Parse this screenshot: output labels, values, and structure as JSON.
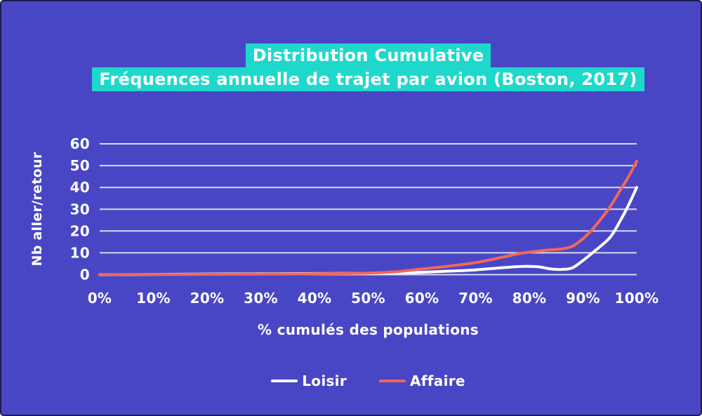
{
  "title": {
    "line1": "Distribution Cumulative",
    "line2": "Fréquences annuelle de trajet par avion (Boston, 2017)"
  },
  "colors": {
    "background": "#4946c6",
    "title_highlight": "#1ed9cb",
    "title_text": "#ffffff",
    "grid": "#d9d9ee",
    "tick_text": "#ffffff",
    "loisir": "#ffffff",
    "affaire": "#f2675a",
    "border": "#1e1d42"
  },
  "chart_data": {
    "type": "line",
    "title": "Distribution Cumulative Fréquences annuelle de trajet par avion (Boston, 2017)",
    "xlabel": "% cumulés des populations",
    "ylabel": "Nb aller/retour",
    "xlim": [
      0,
      100
    ],
    "ylim": [
      0,
      60
    ],
    "grid": "horizontal-only",
    "legend_position": "bottom-center",
    "x_tick_labels": [
      "0%",
      "10%",
      "20%",
      "30%",
      "40%",
      "50%",
      "60%",
      "70%",
      "80%",
      "90%",
      "100%"
    ],
    "x_tick_values": [
      0,
      10,
      20,
      30,
      40,
      50,
      60,
      70,
      80,
      90,
      100
    ],
    "y_tick_values": [
      0,
      10,
      20,
      30,
      40,
      50,
      60
    ],
    "series": [
      {
        "name": "Loisir",
        "color": "#ffffff",
        "x": [
          0,
          5,
          10,
          15,
          20,
          25,
          30,
          35,
          40,
          45,
          50,
          55,
          60,
          65,
          70,
          75,
          78,
          80,
          82,
          84,
          86,
          88,
          90,
          92,
          95,
          97,
          98.5,
          100
        ],
        "y": [
          0,
          0,
          0.1,
          0.2,
          0.3,
          0.35,
          0.4,
          0.45,
          0.5,
          0.55,
          0.6,
          0.8,
          1.1,
          1.6,
          2.2,
          3.2,
          3.7,
          3.8,
          3.5,
          2.6,
          2.4,
          3.1,
          6.5,
          10.5,
          17,
          25,
          32,
          40
        ]
      },
      {
        "name": "Affaire",
        "color": "#f2675a",
        "x": [
          0,
          5,
          10,
          15,
          20,
          25,
          30,
          35,
          40,
          45,
          50,
          55,
          60,
          65,
          70,
          75,
          78,
          80,
          83,
          86,
          88,
          90,
          92,
          95,
          97,
          98.5,
          100
        ],
        "y": [
          0.05,
          0.05,
          0.1,
          0.1,
          0.15,
          0.2,
          0.25,
          0.3,
          0.4,
          0.5,
          0.7,
          1.3,
          2.6,
          3.9,
          5.5,
          8,
          9.6,
          10.3,
          11.2,
          11.8,
          13,
          16.5,
          21.5,
          31,
          39,
          45,
          52
        ]
      }
    ]
  },
  "legend": {
    "items": [
      {
        "label": "Loisir",
        "color": "#ffffff"
      },
      {
        "label": "Affaire",
        "color": "#f2675a"
      }
    ]
  }
}
